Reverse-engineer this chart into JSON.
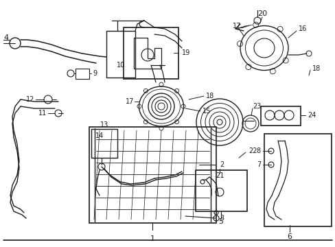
{
  "bg_color": "#ffffff",
  "line_color": "#1a1a1a",
  "fig_width": 4.89,
  "fig_height": 3.6,
  "dpi": 100,
  "img_extent": [
    0,
    489,
    0,
    360
  ]
}
